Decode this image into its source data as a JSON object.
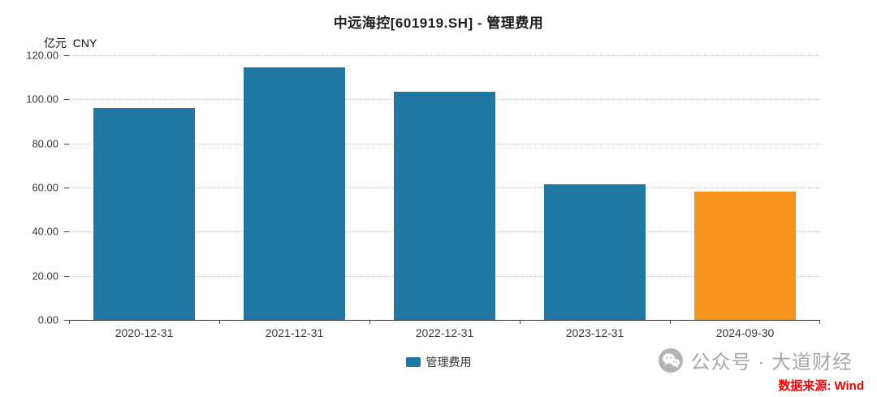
{
  "chart_data": {
    "type": "bar",
    "title": "中远海控[601919.SH] - 管理费用",
    "ylabel": "亿元  CNY",
    "categories": [
      "2020-12-31",
      "2021-12-31",
      "2022-12-31",
      "2023-12-31",
      "2024-09-30"
    ],
    "values": [
      96.0,
      114.5,
      103.5,
      61.5,
      58.0
    ],
    "ylim": [
      0,
      120
    ],
    "ytick_step": 20,
    "ytick_decimals": 2,
    "grid": "horizontal-dotted",
    "bar_colors": [
      "#1f77a4",
      "#1f77a4",
      "#1f77a4",
      "#1f77a4",
      "#f7941e"
    ],
    "legend_position": "bottom-center",
    "legend": [
      {
        "label": "管理费用",
        "color": "#1f77a4"
      }
    ]
  },
  "footer": {
    "watermark_text": "公众号 · 大道财经",
    "source_text": "数据来源: Wind"
  }
}
